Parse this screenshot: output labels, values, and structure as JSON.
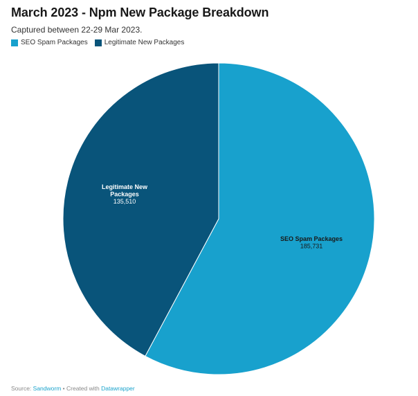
{
  "header": {
    "title": "March 2023 - Npm New Package Breakdown",
    "subtitle": "Captured between 22-29 Mar 2023."
  },
  "colors": {
    "seo_spam": "#18a1cd",
    "legitimate": "#09547a",
    "label_dark": "#181818",
    "label_light": "#ffffff"
  },
  "chart_data": {
    "type": "pie",
    "title": "March 2023 - Npm New Package Breakdown",
    "subtitle": "Captured between 22-29 Mar 2023.",
    "legend_position": "top-left",
    "slices": [
      {
        "label": "SEO Spam Packages",
        "value": 185731,
        "display_value": "185,731",
        "color": "#18a1cd",
        "label_color": "#181818",
        "label_lines": [
          "SEO Spam Packages"
        ]
      },
      {
        "label": "Legitimate New Packages",
        "value": 135510,
        "display_value": "135,510",
        "color": "#09547a",
        "label_color": "#ffffff",
        "label_lines": [
          "Legitimate New",
          "Packages"
        ]
      }
    ]
  },
  "footer": {
    "source_prefix": "Source: ",
    "source_link": "Sandworm",
    "separator": " • Created with ",
    "tool_link": "Datawrapper"
  }
}
